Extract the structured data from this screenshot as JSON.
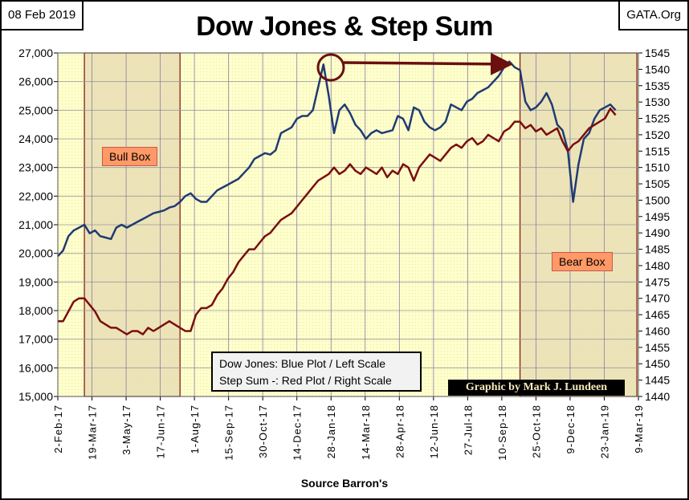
{
  "header": {
    "date": "08 Feb 2019",
    "site": "GATA.Org",
    "title": "Dow Jones & Step Sum"
  },
  "legend": {
    "line1": "Dow Jones: Blue Plot / Left Scale",
    "line2": "Step Sum -: Red Plot / Right Scale"
  },
  "credit": "Graphic by Mark J. Lundeen",
  "source": "Source Barron's",
  "annotations": {
    "bull_box": "Bull Box",
    "bear_box": "Bear Box"
  },
  "colors": {
    "dow": "#1f3b73",
    "step": "#7a0e0e",
    "plot_bg": "#ffffcc",
    "box_bg": "#e9dfb4",
    "label_bg": "#ff9966"
  },
  "chart_data": {
    "type": "line",
    "title": "Dow Jones & Step Sum",
    "xlabel": "Source Barron's",
    "x_start": "2-Feb-17",
    "x_step_days": 7,
    "x_ticks": [
      "2-Feb-17",
      "19-Mar-17",
      "3-May-17",
      "17-Jun-17",
      "1-Aug-17",
      "15-Sep-17",
      "30-Oct-17",
      "14-Dec-17",
      "28-Jan-18",
      "14-Mar-18",
      "28-Apr-18",
      "12-Jun-18",
      "27-Jul-18",
      "10-Sep-18",
      "25-Oct-18",
      "9-Dec-18",
      "23-Jan-19",
      "9-Mar-19"
    ],
    "y_left": {
      "label": "Dow Jones",
      "range": [
        15000,
        27000
      ],
      "ticks": [
        "15,000",
        "16,000",
        "17,000",
        "18,000",
        "19,000",
        "20,000",
        "21,000",
        "22,000",
        "23,000",
        "24,000",
        "25,000",
        "26,000",
        "27,000"
      ]
    },
    "y_right": {
      "label": "Step Sum",
      "range": [
        1440,
        1545
      ],
      "ticks": [
        "1440",
        "1445",
        "1450",
        "1455",
        "1460",
        "1465",
        "1470",
        "1475",
        "1480",
        "1485",
        "1490",
        "1495",
        "1500",
        "1505",
        "1510",
        "1515",
        "1520",
        "1525",
        "1530",
        "1535",
        "1540",
        "1545"
      ]
    },
    "grid": true,
    "bull_box_weeks": [
      5,
      23
    ],
    "bear_box_weeks": [
      87,
      109
    ],
    "series": [
      {
        "name": "Dow Jones",
        "axis": "left",
        "values": [
          19900,
          20100,
          20600,
          20800,
          20900,
          21000,
          20700,
          20800,
          20600,
          20550,
          20500,
          20900,
          21000,
          20900,
          21000,
          21100,
          21200,
          21300,
          21400,
          21450,
          21500,
          21600,
          21650,
          21800,
          22000,
          22100,
          21900,
          21800,
          21800,
          22000,
          22200,
          22300,
          22400,
          22500,
          22600,
          22800,
          23000,
          23300,
          23400,
          23500,
          23450,
          23600,
          24200,
          24300,
          24400,
          24700,
          24800,
          24800,
          25000,
          25800,
          26600,
          25500,
          24200,
          25000,
          25200,
          24900,
          24500,
          24300,
          24000,
          24200,
          24300,
          24200,
          24250,
          24300,
          24800,
          24700,
          24300,
          25100,
          25000,
          24600,
          24400,
          24300,
          24400,
          24600,
          25200,
          25100,
          25000,
          25300,
          25400,
          25600,
          25700,
          25800,
          26000,
          26200,
          26500,
          26700,
          26500,
          26400,
          25300,
          25000,
          25100,
          25300,
          25600,
          25200,
          24500,
          24300,
          23600,
          21800,
          23100,
          24000,
          24200,
          24700,
          25000,
          25100,
          25200,
          25000
        ]
      },
      {
        "name": "Step Sum",
        "axis": "right",
        "values": [
          1463,
          1463,
          1466,
          1469,
          1470,
          1470,
          1468,
          1466,
          1463,
          1462,
          1461,
          1461,
          1460,
          1459,
          1460,
          1460,
          1459,
          1461,
          1460,
          1461,
          1462,
          1463,
          1462,
          1461,
          1460,
          1460,
          1465,
          1467,
          1467,
          1468,
          1471,
          1473,
          1476,
          1478,
          1481,
          1483,
          1485,
          1485,
          1487,
          1489,
          1490,
          1492,
          1494,
          1495,
          1496,
          1498,
          1500,
          1502,
          1504,
          1506,
          1507,
          1508,
          1510,
          1508,
          1509,
          1511,
          1509,
          1508,
          1510,
          1509,
          1508,
          1510,
          1507,
          1509,
          1508,
          1511,
          1510,
          1506,
          1510,
          1512,
          1514,
          1513,
          1512,
          1514,
          1516,
          1517,
          1516,
          1518,
          1519,
          1517,
          1518,
          1520,
          1519,
          1518,
          1521,
          1522,
          1524,
          1524,
          1522,
          1523,
          1521,
          1522,
          1520,
          1521,
          1522,
          1518,
          1515,
          1517,
          1518,
          1520,
          1522,
          1523,
          1524,
          1525,
          1528,
          1526
        ]
      }
    ]
  }
}
